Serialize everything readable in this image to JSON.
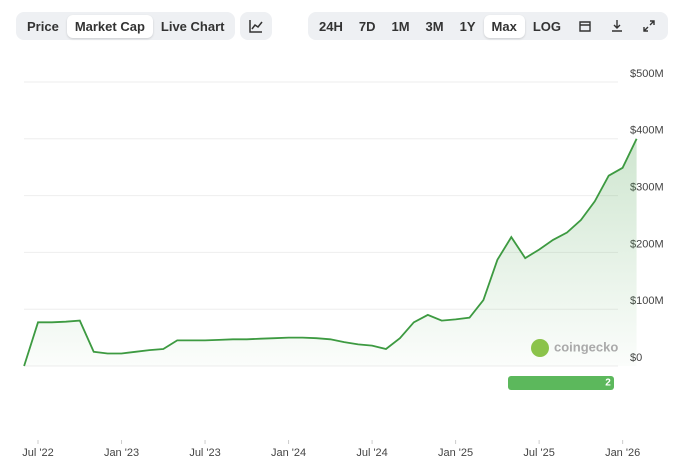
{
  "ui": {
    "tabs": [
      "Price",
      "Market Cap",
      "Live Chart"
    ],
    "active_tab": 1,
    "ranges": [
      "24H",
      "7D",
      "1M",
      "3M",
      "1Y",
      "Max",
      "LOG"
    ],
    "active_range": 5,
    "watermark": "coingecko",
    "badge": "2"
  },
  "chart_data": {
    "type": "line",
    "x": [
      "2022-06",
      "2022-07",
      "2022-08",
      "2022-09",
      "2022-10",
      "2022-11",
      "2022-12",
      "2023-01",
      "2023-02",
      "2023-03",
      "2023-04",
      "2023-05",
      "2023-06",
      "2023-07",
      "2023-08",
      "2023-09",
      "2023-10",
      "2023-11",
      "2023-12",
      "2024-01",
      "2024-02",
      "2024-03",
      "2024-04",
      "2024-05",
      "2024-06",
      "2024-07",
      "2024-08",
      "2024-09",
      "2024-10",
      "2024-11",
      "2024-12",
      "2025-01",
      "2025-02",
      "2025-03",
      "2025-04",
      "2025-05",
      "2025-06",
      "2025-07",
      "2025-08",
      "2025-09",
      "2025-10",
      "2025-11",
      "2025-12",
      "2026-01",
      "2026-02"
    ],
    "series": [
      {
        "name": "Market Cap",
        "color": "#3d9a41",
        "values": [
          0,
          77,
          77,
          78,
          80,
          25,
          22,
          22,
          25,
          28,
          30,
          45,
          45,
          45,
          46,
          47,
          47,
          48,
          49,
          50,
          50,
          49,
          47,
          42,
          38,
          36,
          30,
          49,
          77,
          90,
          80,
          82,
          85,
          116,
          187,
          227,
          190,
          205,
          222,
          235,
          257,
          290,
          335,
          349,
          400
        ]
      }
    ],
    "ylim": [
      0,
      500
    ],
    "yticks": [
      {
        "value": 0,
        "label": "$0"
      },
      {
        "value": 100,
        "label": "$100M"
      },
      {
        "value": 200,
        "label": "$200M"
      },
      {
        "value": 300,
        "label": "$300M"
      },
      {
        "value": 400,
        "label": "$400M"
      },
      {
        "value": 500,
        "label": "$500M"
      }
    ],
    "xticks": [
      {
        "value": "2022-07",
        "label": "Jul '22"
      },
      {
        "value": "2023-01",
        "label": "Jan '23"
      },
      {
        "value": "2023-07",
        "label": "Jul '23"
      },
      {
        "value": "2024-01",
        "label": "Jan '24"
      },
      {
        "value": "2024-07",
        "label": "Jul '24"
      },
      {
        "value": "2025-01",
        "label": "Jan '25"
      },
      {
        "value": "2025-07",
        "label": "Jul '25"
      },
      {
        "value": "2026-01",
        "label": "Jan '26"
      }
    ],
    "grid": true
  }
}
